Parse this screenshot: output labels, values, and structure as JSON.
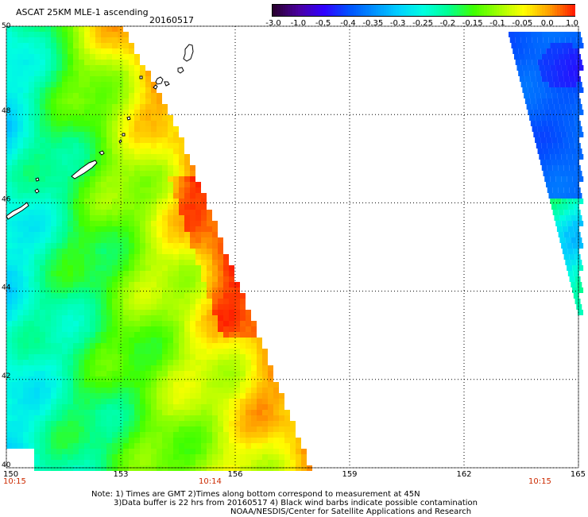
{
  "header": {
    "title": "ASCAT 25KM MLE-1 ascending",
    "date": "20160517"
  },
  "colorbar": {
    "labels": [
      "-3.0",
      "-1.0",
      "-0.5",
      "-0.4",
      "-0.35",
      "-0.3",
      "-0.25",
      "-0.2",
      "-0.15",
      "-0.1",
      "-0.05",
      "0.0",
      "1.0"
    ],
    "colors": [
      "#2a0030",
      "#4a00a0",
      "#3000ff",
      "#0050ff",
      "#0090ff",
      "#00d0ff",
      "#00ffe0",
      "#00ff90",
      "#40ff00",
      "#a0ff00",
      "#ffff00",
      "#ffa000",
      "#ff2000"
    ]
  },
  "map": {
    "lon_range": [
      150,
      165
    ],
    "lat_range": [
      40,
      50
    ],
    "lon_ticks": [
      "150",
      "153",
      "156",
      "159",
      "162",
      "165"
    ],
    "lat_ticks": [
      "50",
      "48",
      "46",
      "44",
      "42",
      "40"
    ],
    "grid": "dotted"
  },
  "times": {
    "left": "10:15",
    "center": "10:14",
    "right": "10:15"
  },
  "notes": {
    "line1": "Note: 1) Times are GMT 2)Times along bottom correspond to measurement at 45N",
    "line2": "3)Data buffer is 22 hrs from 20160517 4) Black wind barbs indicate possible contamination",
    "line3": "NOAA/NESDIS/Center for Satellite Applications and Research"
  }
}
